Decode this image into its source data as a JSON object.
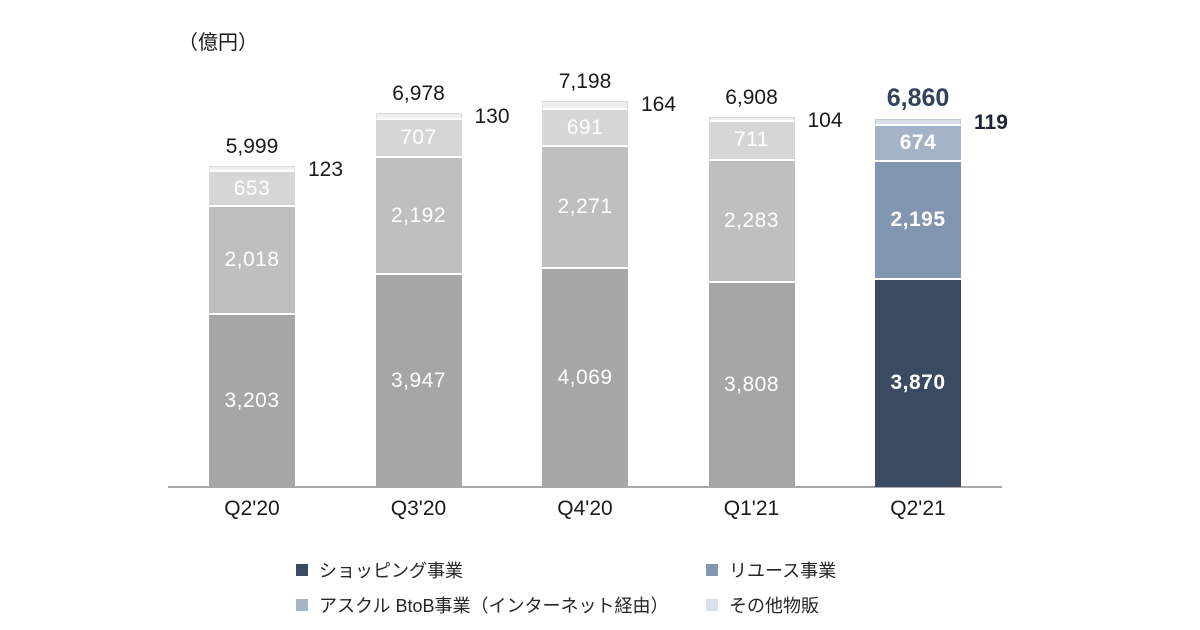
{
  "unit_label": "（億円）",
  "chart_data": {
    "type": "bar",
    "stacked": true,
    "title": "",
    "xlabel": "",
    "ylabel": "億円",
    "ylim": [
      0,
      7200
    ],
    "grid": false,
    "legend_position": "bottom",
    "categories": [
      "Q2'20",
      "Q3'20",
      "Q4'20",
      "Q1'21",
      "Q2'21"
    ],
    "series": [
      {
        "name": "ショッピング事業",
        "values": [
          3203,
          3947,
          4069,
          3808,
          3870
        ]
      },
      {
        "name": "リユース事業",
        "values": [
          2018,
          2192,
          2271,
          2283,
          2195
        ]
      },
      {
        "name": "アスクル BtoB事業（インターネット経由）",
        "values": [
          653,
          707,
          691,
          711,
          674
        ]
      },
      {
        "name": "その他物販",
        "values": [
          123,
          130,
          164,
          104,
          119
        ]
      }
    ],
    "totals_displayed": [
      "5,999",
      "6,978",
      "7,198",
      "6,908",
      "6,860"
    ],
    "highlight_category": "Q2'21"
  },
  "colors": {
    "series_default": [
      "#a6a6a6",
      "#bfbfbf",
      "#d6d6d6",
      "#efefef"
    ],
    "series_highlight": [
      "#3b4a63",
      "#8296b2",
      "#a5b3c7",
      "#dae0e9"
    ],
    "other_border_default": "#dcdcdc",
    "other_border_highlight": "#c2ccd9",
    "separator": "#ffffff",
    "segment_label_text": "#ffffff",
    "total_text": "#1a1a1a",
    "highlight_total_text": "#32425c",
    "highlight_side_text": "#1c2433",
    "axis_line": "#a8a8a8",
    "text": "#1a1a1a"
  }
}
